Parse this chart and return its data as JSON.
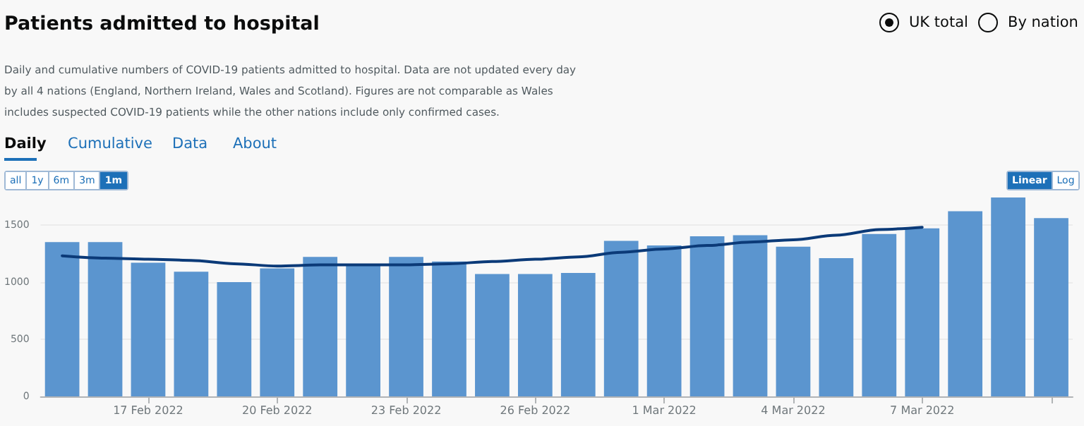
{
  "chart_data": {
    "type": "bar",
    "title": "Patients admitted to hospital",
    "subtitle": "Daily and cumulative numbers of COVID-19 patients admitted to hospital. Data are not updated every day by all 4 nations (England, Northern Ireland, Wales and Scotland). Figures are not comparable as Wales includes suspected COVID-19 patients while the other nations include only confirmed cases.",
    "annotations": [
      "UK total",
      "By nation",
      "Daily",
      "Cumulative",
      "Data",
      "About",
      "all",
      "1y",
      "6m",
      "3m",
      "1m",
      "Linear",
      "Log"
    ],
    "categories": [
      null,
      null,
      "17 Feb 2022",
      null,
      null,
      "20 Feb 2022",
      null,
      null,
      "23 Feb 2022",
      null,
      null,
      "26 Feb 2022",
      null,
      null,
      "1 Mar 2022",
      null,
      null,
      "4 Mar 2022",
      null,
      null,
      "7 Mar 2022",
      null,
      null,
      null
    ],
    "series": [
      {
        "color": "#5b95cf",
        "values": [
          1350,
          1350,
          1170,
          1090,
          1000,
          1120,
          1220,
          1150,
          1220,
          1180,
          1070,
          1070,
          1080,
          1360,
          1320,
          1400,
          1410,
          1310,
          1210,
          1420,
          1470,
          1620,
          1740,
          1560
        ]
      },
      {
        "type": "line",
        "color": "#0b3a78",
        "values": [
          1230,
          1210,
          1200,
          1190,
          1160,
          1140,
          1150,
          1150,
          1150,
          1160,
          1180,
          1200,
          1220,
          1260,
          1290,
          1320,
          1350,
          1370,
          1410,
          1460,
          1480,
          null,
          null,
          null
        ]
      }
    ],
    "ylim": [
      0,
      1740
    ],
    "yticks": [
      0,
      500,
      1000,
      1500
    ],
    "grid": "y",
    "marker": "none",
    "line_style": "solid"
  }
}
